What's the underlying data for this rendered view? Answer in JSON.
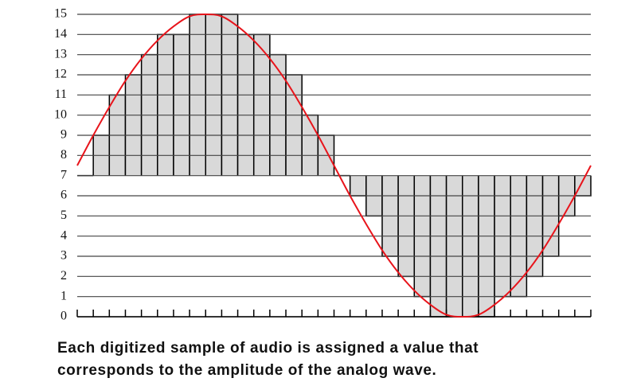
{
  "chart_data": {
    "type": "step",
    "caption": [
      "Each digitized sample of audio is assigned a value that",
      "corresponds to the amplitude of the analog wave."
    ],
    "ylim": [
      0,
      15
    ],
    "yticks": [
      0,
      1,
      2,
      3,
      4,
      5,
      6,
      7,
      8,
      9,
      10,
      11,
      12,
      13,
      14,
      15
    ],
    "xlim": [
      0,
      32
    ],
    "xticks": [
      0,
      1,
      2,
      3,
      4,
      5,
      6,
      7,
      8,
      9,
      10,
      11,
      12,
      13,
      14,
      15,
      16,
      17,
      18,
      19,
      20,
      21,
      22,
      23,
      24,
      25,
      26,
      27,
      28,
      29,
      30,
      31,
      32
    ],
    "grid": true,
    "samples": {
      "color": "#d9d9d9",
      "fill_to": 7,
      "values": [
        7,
        9,
        11,
        12,
        13,
        14,
        14,
        15,
        15,
        15,
        14,
        14,
        13,
        12,
        10,
        9,
        7,
        6,
        5,
        3,
        2,
        1,
        0,
        0,
        0,
        0,
        1,
        1,
        2,
        3,
        5,
        6
      ]
    },
    "wave": {
      "color": "#e8141b",
      "x": [
        0,
        1,
        2,
        3,
        4,
        5,
        6,
        7,
        8,
        9,
        10,
        11,
        12,
        13,
        14,
        15,
        16,
        17,
        18,
        19,
        20,
        21,
        22,
        23,
        24,
        25,
        26,
        27,
        28,
        29,
        30,
        31,
        32
      ],
      "values": [
        7.5,
        9.0,
        10.4,
        11.7,
        12.8,
        13.7,
        14.4,
        14.9,
        15,
        14.9,
        14.4,
        13.7,
        12.8,
        11.7,
        10.4,
        9.0,
        7.5,
        6.0,
        4.6,
        3.3,
        2.2,
        1.3,
        0.6,
        0.1,
        0,
        0.1,
        0.6,
        1.3,
        2.2,
        3.3,
        4.6,
        6.0,
        7.5
      ]
    }
  }
}
